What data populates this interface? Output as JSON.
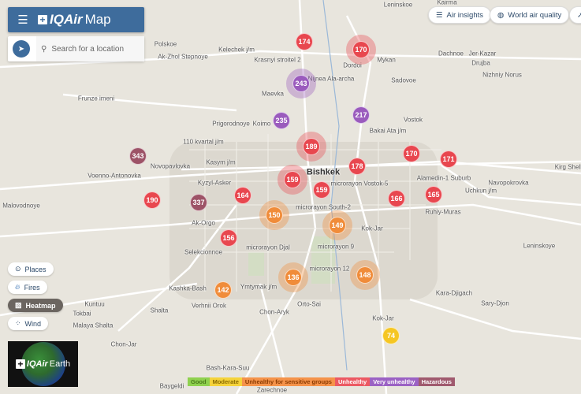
{
  "header": {
    "menu_icon": "hamburger-icon",
    "brand": "IQAir",
    "product": "Map"
  },
  "search": {
    "placeholder": "Search for a location"
  },
  "top_buttons": [
    {
      "label": "Air insights",
      "icon": "list-icon"
    },
    {
      "label": "World air quality",
      "icon": "globe-icon"
    },
    {
      "label": "",
      "icon": "share-arrow-icon"
    }
  ],
  "toggles": [
    {
      "label": "Places",
      "icon": "pin-icon",
      "active": false
    },
    {
      "label": "Fires",
      "icon": "fire-icon",
      "active": false
    },
    {
      "label": "Heatmap",
      "icon": "heatmap-icon",
      "active": true
    },
    {
      "label": "Wind",
      "icon": "wind-icon",
      "active": false
    }
  ],
  "earth": {
    "brand": "IQAir",
    "label": "Earth"
  },
  "legend": [
    {
      "label": "Good",
      "color": "#8fd14f",
      "text": "#4a7a1a"
    },
    {
      "label": "Moderate",
      "color": "#f5d33a",
      "text": "#8a6a00"
    },
    {
      "label": "Unhealthy for sensitive groups",
      "color": "#f5934a",
      "text": "#8a3a00"
    },
    {
      "label": "Unhealthy",
      "color": "#ec5a63",
      "text": "#fff"
    },
    {
      "label": "Very unhealthy",
      "color": "#9b62c4",
      "text": "#fff"
    },
    {
      "label": "Hazardous",
      "color": "#a05a6e",
      "text": "#fff"
    }
  ],
  "colors": {
    "unhealthy": "#e8474f",
    "very_unhealthy": "#9a5bbd",
    "hazardous": "#9d5367",
    "sensitive": "#f08c3a",
    "moderate": "#f5c623"
  },
  "markers": [
    {
      "aqi": 174,
      "level": "unhealthy"
    },
    {
      "aqi": 170,
      "level": "unhealthy"
    },
    {
      "aqi": 243,
      "level": "very_unhealthy"
    },
    {
      "aqi": 235,
      "level": "very_unhealthy"
    },
    {
      "aqi": 217,
      "level": "very_unhealthy"
    },
    {
      "aqi": 343,
      "level": "hazardous"
    },
    {
      "aqi": 189,
      "level": "unhealthy"
    },
    {
      "aqi": 178,
      "level": "unhealthy"
    },
    {
      "aqi": 170,
      "level": "unhealthy"
    },
    {
      "aqi": 171,
      "level": "unhealthy"
    },
    {
      "aqi": 159,
      "level": "unhealthy"
    },
    {
      "aqi": 159,
      "level": "unhealthy"
    },
    {
      "aqi": 164,
      "level": "unhealthy"
    },
    {
      "aqi": 190,
      "level": "unhealthy"
    },
    {
      "aqi": 337,
      "level": "hazardous"
    },
    {
      "aqi": 166,
      "level": "unhealthy"
    },
    {
      "aqi": 165,
      "level": "unhealthy"
    },
    {
      "aqi": 150,
      "level": "sensitive"
    },
    {
      "aqi": 149,
      "level": "sensitive"
    },
    {
      "aqi": 156,
      "level": "unhealthy"
    },
    {
      "aqi": 136,
      "level": "sensitive"
    },
    {
      "aqi": 148,
      "level": "sensitive"
    },
    {
      "aqi": 142,
      "level": "sensitive"
    },
    {
      "aqi": 74,
      "level": "moderate"
    }
  ],
  "places": [
    "Leninskoe",
    "Kairma",
    "Krasnyi stroitel 2",
    "Kelechek j/m",
    "Dordoi",
    "Mykan",
    "Dachnoe",
    "Jer-Kazar",
    "Sadovoe",
    "Drujba",
    "Nizhniy Norus",
    "Nijnea Ala-archa",
    "Maevka",
    "Frunze imeni",
    "Prigorodnoye",
    "Koimo",
    "Bakai Ata j/m",
    "Vostok",
    "110 kvartal j/m",
    "Kasym j/m",
    "Voenno-Antonovka",
    "Novopavlovka",
    "Kyzyl-Asker",
    "Bishkek",
    "microrayon Vostok-5",
    "Alamedin-1 Suburb",
    "Kirg Shelk",
    "Navopokrovka",
    "Uchkun j/m",
    "microrayon South-2",
    "Ruhiy-Muras",
    "Malovodnoye",
    "Ak-Orgo",
    "Selekcionnoe",
    "microrayon Djal",
    "Kok-Jar",
    "microrayon 9",
    "microrayon 12",
    "Leninskoye",
    "Kashka-Bash",
    "Ymtymak j/m",
    "Verhnii Orok",
    "Kara-Djigach",
    "Orto-Sai",
    "Chon-Aryk",
    "Sary-Djon",
    "Kuntuu",
    "Tokbai",
    "Shalta",
    "Malaya Shalta",
    "Kok-Jar",
    "Chon-Jar",
    "Bash-Kara-Suu",
    "Baygeldi",
    "Zarechnoe",
    "Ak-Zhol Stepnoye",
    "Polskoe"
  ]
}
